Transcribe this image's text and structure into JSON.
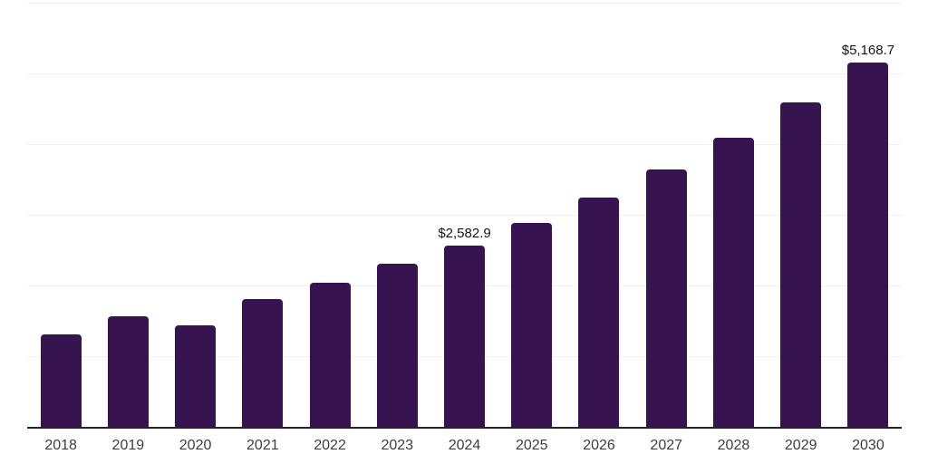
{
  "chart_data": {
    "type": "bar",
    "title": "",
    "xlabel": "",
    "ylabel": "",
    "categories": [
      "2018",
      "2019",
      "2020",
      "2021",
      "2022",
      "2023",
      "2024",
      "2025",
      "2026",
      "2027",
      "2028",
      "2029",
      "2030"
    ],
    "values": [
      1320,
      1580,
      1450,
      1825,
      2055,
      2320,
      2582.9,
      2900,
      3255,
      3655,
      4100,
      4600,
      5168.7
    ],
    "data_labels": [
      null,
      null,
      null,
      null,
      null,
      null,
      "$2,582.9",
      null,
      null,
      null,
      null,
      null,
      "$5,168.7"
    ],
    "ylim": [
      0,
      6000
    ],
    "gridline_values": [
      1000,
      2000,
      3000,
      4000,
      5000,
      6000
    ],
    "grid_on": true,
    "legend_position": "none",
    "colors": {
      "bar": "#371450",
      "axis_line": "#262626",
      "gridline": "#f0f0f0",
      "tick_label": "#3d3d3d",
      "data_label": "#151515",
      "background": "#ffffff"
    }
  }
}
